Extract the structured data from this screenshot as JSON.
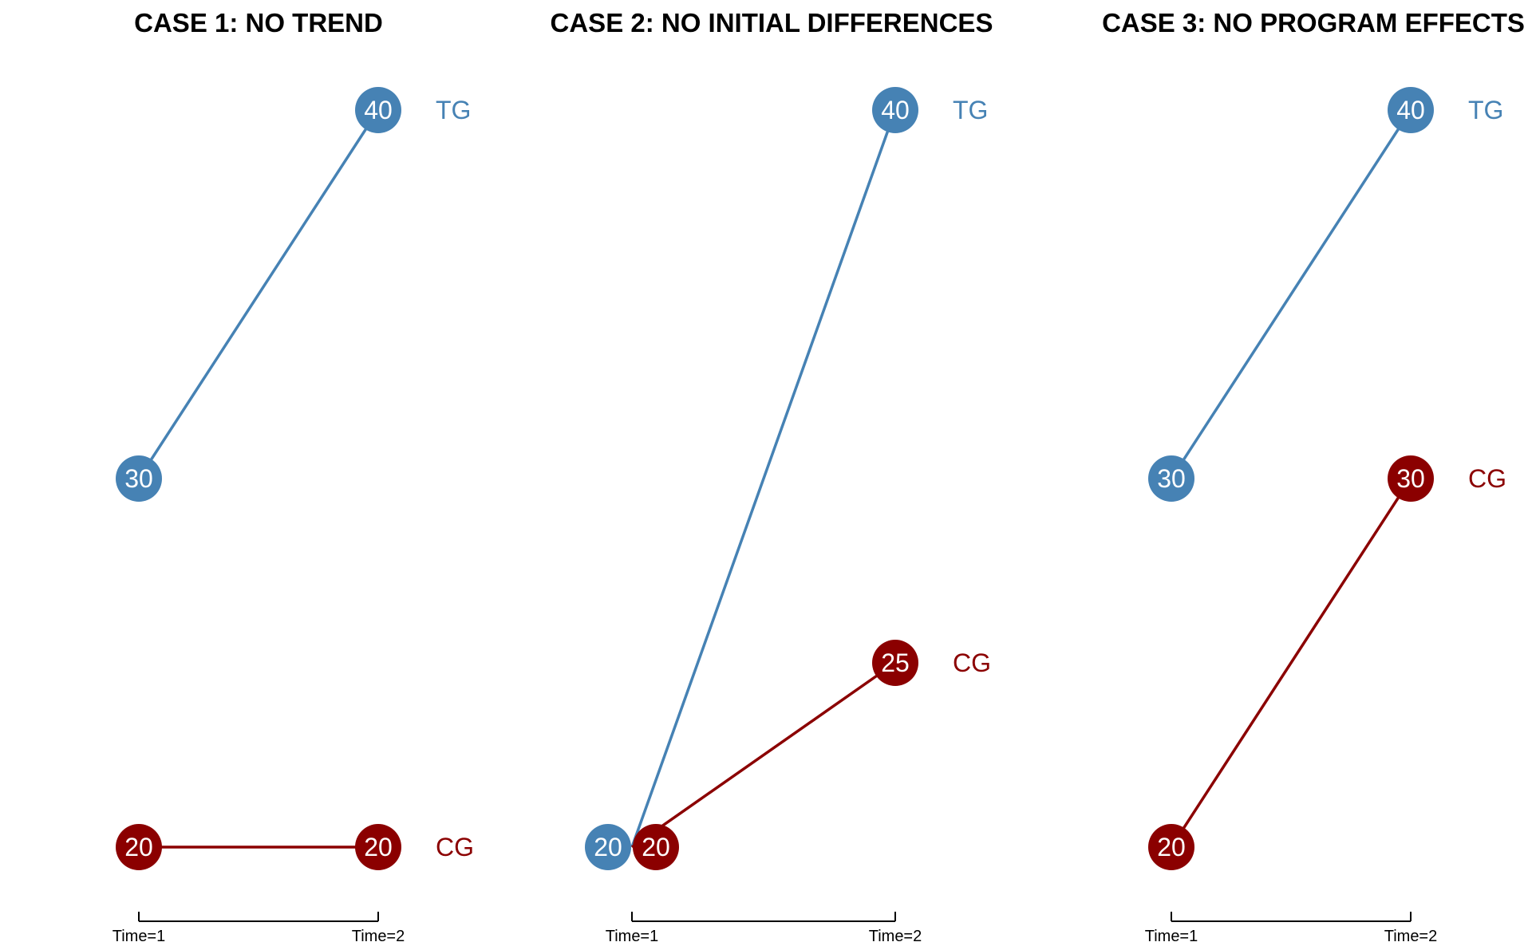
{
  "chart_data": [
    {
      "type": "line",
      "title": "CASE 1: NO TREND",
      "categories": [
        "Time=1",
        "Time=2"
      ],
      "series": [
        {
          "name": "TG",
          "values": [
            30,
            40
          ],
          "color": "#4682B4"
        },
        {
          "name": "CG",
          "values": [
            20,
            20
          ],
          "color": "#8B0000"
        }
      ],
      "ylim": [
        20,
        40
      ],
      "grid": false
    },
    {
      "type": "line",
      "title": "CASE 2: NO INITIAL DIFFERENCES",
      "categories": [
        "Time=1",
        "Time=2"
      ],
      "series": [
        {
          "name": "TG",
          "values": [
            20,
            40
          ],
          "color": "#4682B4"
        },
        {
          "name": "CG",
          "values": [
            20,
            25
          ],
          "color": "#8B0000"
        }
      ],
      "ylim": [
        20,
        40
      ],
      "grid": false
    },
    {
      "type": "line",
      "title": "CASE 3: NO PROGRAM EFFECTS",
      "categories": [
        "Time=1",
        "Time=2"
      ],
      "series": [
        {
          "name": "TG",
          "values": [
            30,
            40
          ],
          "color": "#4682B4"
        },
        {
          "name": "CG",
          "values": [
            20,
            30
          ],
          "color": "#8B0000"
        }
      ],
      "ylim": [
        20,
        40
      ],
      "grid": false
    }
  ]
}
